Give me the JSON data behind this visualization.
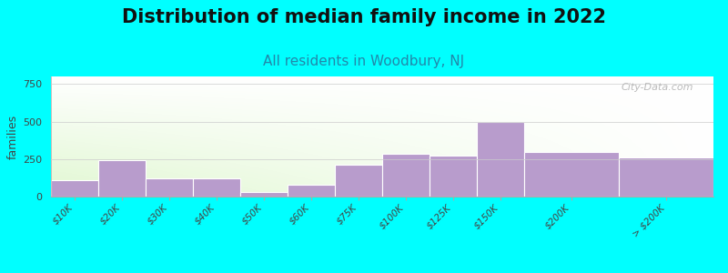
{
  "title": "Distribution of median family income in 2022",
  "subtitle": "All residents in Woodbury, NJ",
  "ylabel": "families",
  "background_color": "#00FFFF",
  "bar_color": "#b89ccc",
  "bar_edge_color": "#c8acdc",
  "categories": [
    "$10K",
    "$20K",
    "$30K",
    "$40K",
    "$50K",
    "$60K",
    "$75K",
    "$100K",
    "$125K",
    "$150K",
    "$200K",
    "> $200K"
  ],
  "values": [
    110,
    240,
    120,
    120,
    30,
    80,
    210,
    285,
    275,
    500,
    300,
    260
  ],
  "bar_widths": [
    1,
    1,
    1,
    1,
    1,
    1,
    1,
    1,
    1,
    1,
    2,
    2
  ],
  "bar_lefts": [
    0,
    1,
    2,
    3,
    4,
    5,
    6,
    7,
    8,
    9,
    10,
    12
  ],
  "ylim": [
    0,
    800
  ],
  "yticks": [
    0,
    250,
    500,
    750
  ],
  "xlim": [
    0,
    14
  ],
  "xtick_positions": [
    0.5,
    1.5,
    2.5,
    3.5,
    4.5,
    5.5,
    6.5,
    7.5,
    8.5,
    9.5,
    11.0,
    13.0
  ],
  "title_fontsize": 15,
  "subtitle_fontsize": 11,
  "watermark": "City-Data.com",
  "gradient_left_color": "#d8eec0",
  "gradient_right_color": "#f0f8f0",
  "gradient_top_color": "#ffffff"
}
